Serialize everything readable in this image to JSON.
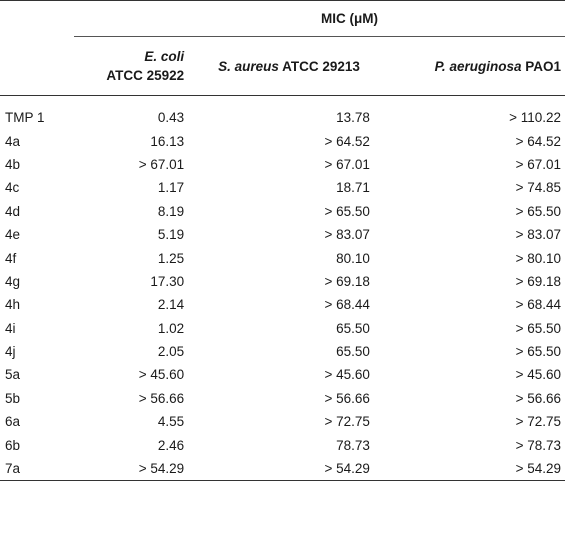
{
  "header": {
    "group_label": "MIC (μM)",
    "columns": [
      {
        "species": "E. coli",
        "strain": "ATCC 25922"
      },
      {
        "species": "S. aureus",
        "strain": "ATCC 29213"
      },
      {
        "species": "P. aeruginosa",
        "strain": "PAO1"
      }
    ]
  },
  "rows": [
    {
      "compound": "TMP 1",
      "ecoli": "0.43",
      "saureus": "13.78",
      "paeruginosa": "> 110.22"
    },
    {
      "compound": "4a",
      "ecoli": "16.13",
      "saureus": "> 64.52",
      "paeruginosa": "> 64.52"
    },
    {
      "compound": "4b",
      "ecoli": "> 67.01",
      "saureus": "> 67.01",
      "paeruginosa": "> 67.01"
    },
    {
      "compound": "4c",
      "ecoli": "1.17",
      "saureus": "18.71",
      "paeruginosa": "> 74.85"
    },
    {
      "compound": "4d",
      "ecoli": "8.19",
      "saureus": "> 65.50",
      "paeruginosa": "> 65.50"
    },
    {
      "compound": "4e",
      "ecoli": "5.19",
      "saureus": "> 83.07",
      "paeruginosa": "> 83.07"
    },
    {
      "compound": "4f",
      "ecoli": "1.25",
      "saureus": "80.10",
      "paeruginosa": "> 80.10"
    },
    {
      "compound": "4g",
      "ecoli": "17.30",
      "saureus": "> 69.18",
      "paeruginosa": "> 69.18"
    },
    {
      "compound": "4h",
      "ecoli": "2.14",
      "saureus": "> 68.44",
      "paeruginosa": "> 68.44"
    },
    {
      "compound": "4i",
      "ecoli": "1.02",
      "saureus": "65.50",
      "paeruginosa": "> 65.50"
    },
    {
      "compound": "4j",
      "ecoli": "2.05",
      "saureus": "65.50",
      "paeruginosa": "> 65.50"
    },
    {
      "compound": "5a",
      "ecoli": "> 45.60",
      "saureus": "> 45.60",
      "paeruginosa": "> 45.60"
    },
    {
      "compound": "5b",
      "ecoli": "> 56.66",
      "saureus": "> 56.66",
      "paeruginosa": "> 56.66"
    },
    {
      "compound": "6a",
      "ecoli": "4.55",
      "saureus": "> 72.75",
      "paeruginosa": "> 72.75"
    },
    {
      "compound": "6b",
      "ecoli": "2.46",
      "saureus": "78.73",
      "paeruginosa": "> 78.73"
    },
    {
      "compound": "7a",
      "ecoli": "> 54.29",
      "saureus": "> 54.29",
      "paeruginosa": "> 54.29"
    }
  ]
}
